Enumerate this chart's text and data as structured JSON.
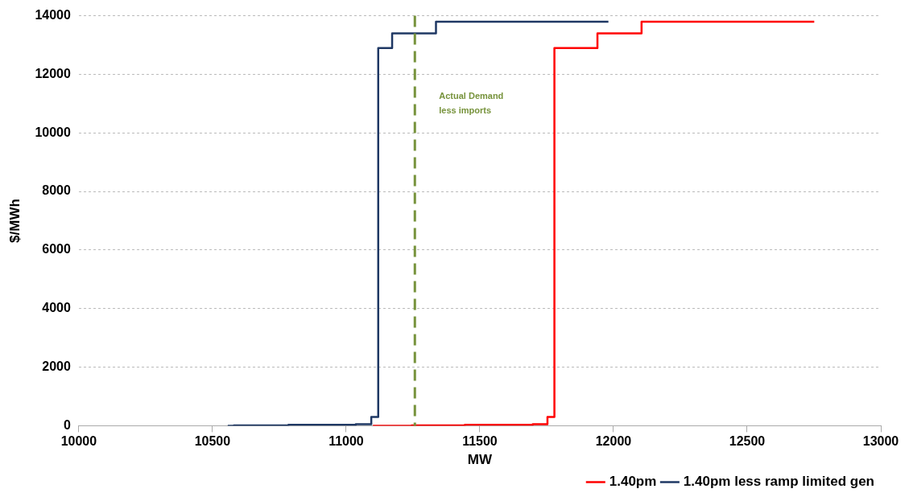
{
  "chart_data": {
    "type": "step",
    "xlabel": "MW",
    "ylabel": "$/MWh",
    "xlim": [
      10000,
      13000
    ],
    "xticks": [
      10000,
      10500,
      11000,
      11500,
      12000,
      12500,
      13000
    ],
    "ylim": [
      0,
      14000
    ],
    "yticks": [
      0,
      2000,
      4000,
      6000,
      8000,
      10000,
      12000,
      14000
    ],
    "grid": "y",
    "legend": "bottom",
    "series": [
      {
        "name": "1.40pm",
        "color": "#ff0000",
        "x": [
          11100,
          11245,
          11444,
          11698,
          11753,
          11779,
          11940,
          12105,
          12751
        ],
        "values": [
          0,
          10,
          30,
          50,
          300,
          12900,
          13400,
          13800,
          13800
        ]
      },
      {
        "name": "1.40pm less ramp limited gen",
        "color": "#1f3864",
        "x": [
          10557,
          10580,
          10784,
          11036,
          11094,
          11120,
          11172,
          11336,
          11981
        ],
        "values": [
          0,
          10,
          30,
          50,
          300,
          12900,
          13400,
          13800,
          13800
        ]
      }
    ],
    "ref_lines": [
      {
        "axis": "x",
        "value": 11257,
        "label": "Actual Demand less imports",
        "color": "#77933c",
        "line_style": "dashed"
      }
    ]
  }
}
